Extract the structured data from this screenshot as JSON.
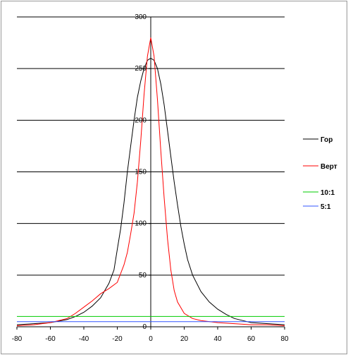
{
  "chart_data": {
    "type": "line",
    "title": "",
    "xlabel": "",
    "ylabel": "",
    "xlim": [
      -80,
      80
    ],
    "ylim": [
      0,
      300
    ],
    "x_ticks": [
      -80,
      -60,
      -40,
      -20,
      0,
      20,
      40,
      60,
      80
    ],
    "y_ticks": [
      0,
      50,
      100,
      150,
      200,
      250,
      300
    ],
    "grid": "horizontal",
    "legend_position": "right",
    "series": [
      {
        "name": "Гор",
        "color": "#000000",
        "x": [
          -80,
          -70,
          -60,
          -50,
          -45,
          -40,
          -35,
          -30,
          -25,
          -22,
          -20,
          -18,
          -16,
          -14,
          -12,
          -10,
          -8,
          -6,
          -4,
          -2,
          0,
          2,
          4,
          6,
          8,
          10,
          12,
          14,
          16,
          18,
          20,
          22,
          25,
          30,
          35,
          40,
          45,
          50,
          55,
          60,
          70,
          80
        ],
        "y": [
          2,
          3,
          4,
          7,
          10,
          14,
          20,
          28,
          42,
          55,
          75,
          95,
          120,
          150,
          175,
          200,
          222,
          238,
          250,
          258,
          260,
          258,
          250,
          235,
          215,
          190,
          165,
          140,
          118,
          97,
          80,
          65,
          50,
          34,
          24,
          17,
          12,
          8,
          6,
          4,
          3,
          2
        ]
      },
      {
        "name": "Верт",
        "color": "#ff0000",
        "x": [
          -80,
          -70,
          -60,
          -50,
          -45,
          -40,
          -35,
          -30,
          -25,
          -20,
          -16,
          -14,
          -12,
          -10,
          -8,
          -6,
          -4,
          -2,
          0,
          2,
          4,
          6,
          8,
          10,
          12,
          14,
          16,
          20,
          25,
          30,
          40,
          50,
          60,
          70,
          80
        ],
        "y": [
          1,
          2,
          4,
          8,
          13,
          19,
          25,
          32,
          37,
          43,
          60,
          72,
          90,
          110,
          140,
          180,
          225,
          262,
          280,
          262,
          220,
          170,
          125,
          85,
          55,
          35,
          24,
          13,
          8,
          6,
          4,
          3,
          2,
          2,
          1
        ]
      },
      {
        "name": "10:1",
        "color": "#00cc00",
        "x": [
          -80,
          80
        ],
        "y": [
          10,
          10
        ]
      },
      {
        "name": "5:1",
        "color": "#3355ff",
        "x": [
          -80,
          80
        ],
        "y": [
          5,
          5
        ]
      }
    ]
  }
}
